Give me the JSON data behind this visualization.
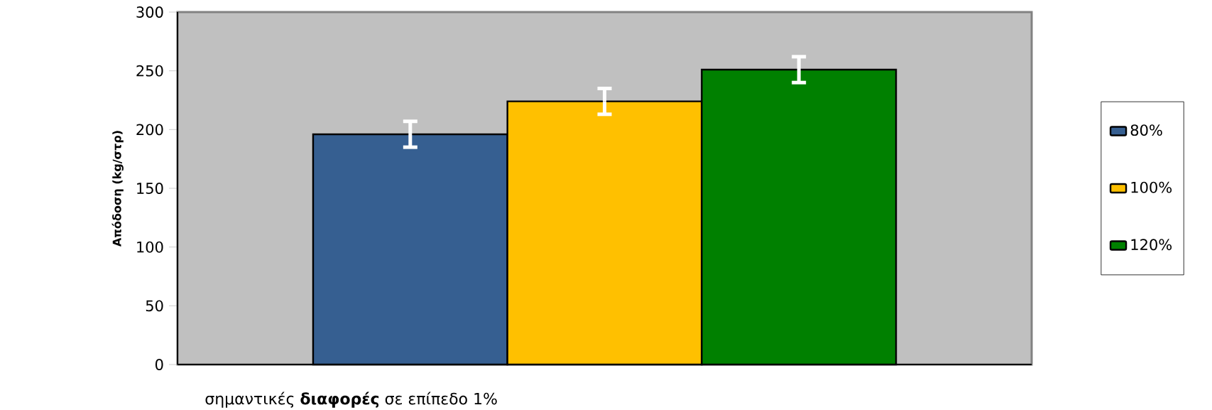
{
  "chart_data": {
    "type": "bar",
    "ylabel": "Απόδοση (kg/στρ)",
    "categories": [
      null
    ],
    "series": [
      {
        "name": "80%",
        "color": "#365f91",
        "values": [
          196
        ],
        "errors": [
          11
        ]
      },
      {
        "name": "100%",
        "color": "#ffc000",
        "values": [
          224
        ],
        "errors": [
          11
        ]
      },
      {
        "name": "120%",
        "color": "#008000",
        "values": [
          251
        ],
        "errors": [
          11
        ]
      }
    ],
    "ylim": [
      0,
      300
    ],
    "yticks": [
      0,
      50,
      100,
      150,
      200,
      250,
      300
    ],
    "legend": "right",
    "annotations": [
      "σημαντικές **διαφορές** σε επίπεδο 1%"
    ]
  }
}
